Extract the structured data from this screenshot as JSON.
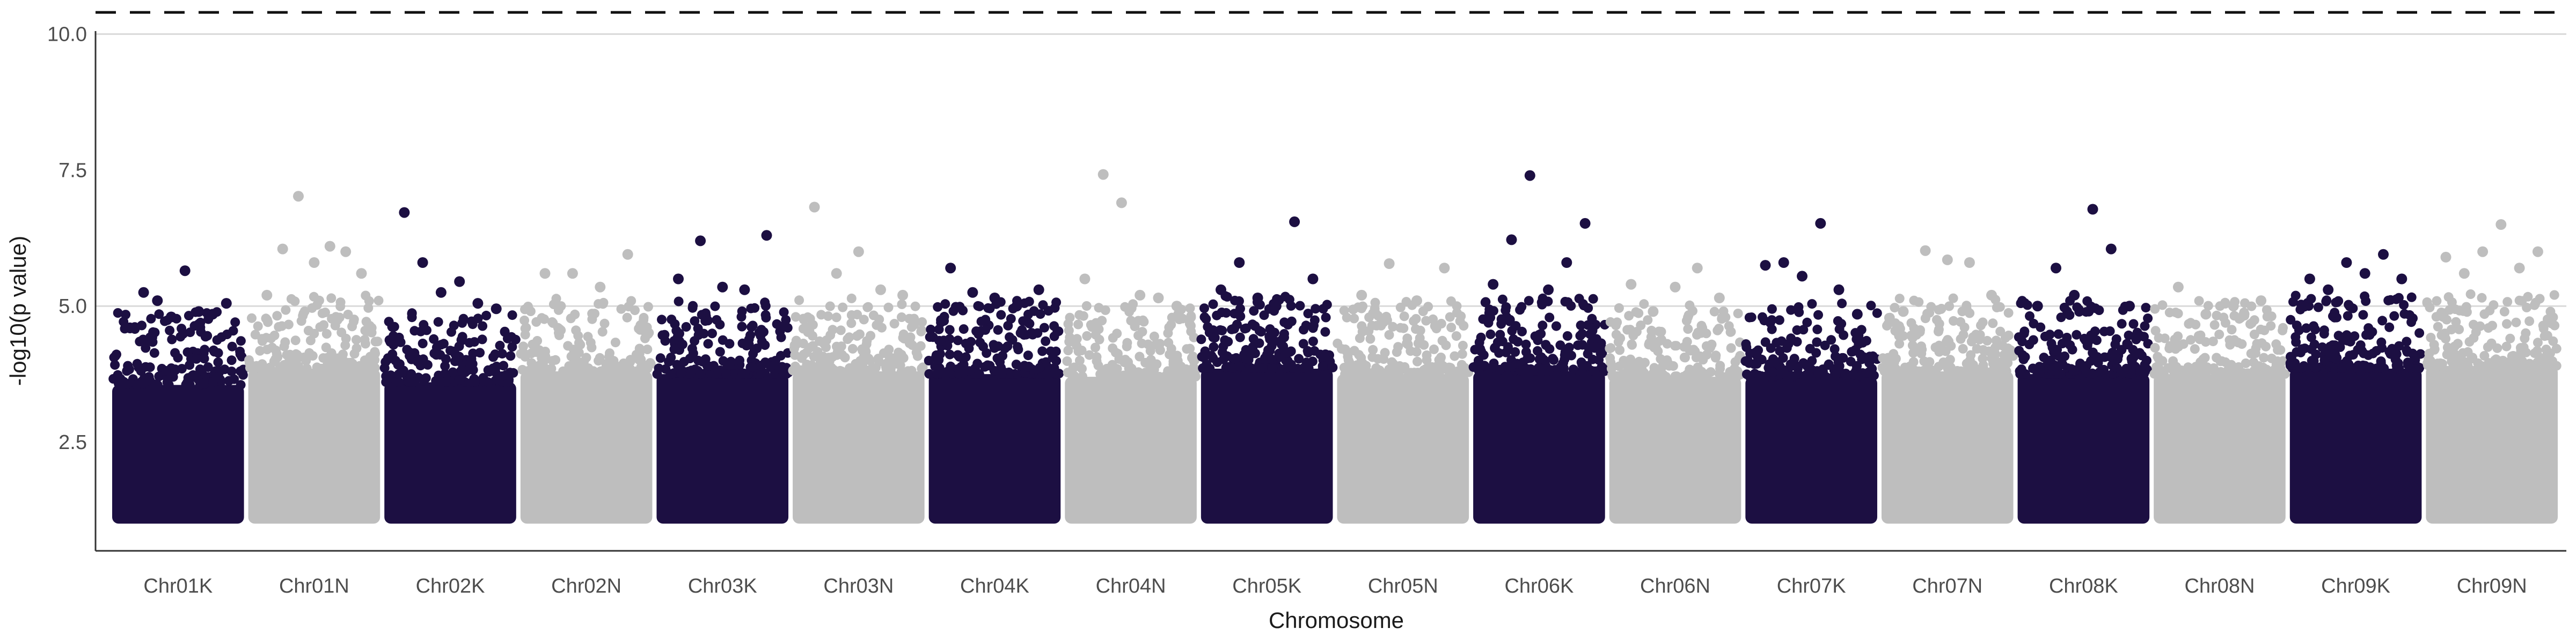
{
  "chart_data": {
    "type": "scatter",
    "title": "",
    "xlabel": "Chromosome",
    "ylabel": "-log10(p value)",
    "categories": [
      "Chr01K",
      "Chr01N",
      "Chr02K",
      "Chr02N",
      "Chr03K",
      "Chr03N",
      "Chr04K",
      "Chr04N",
      "Chr05K",
      "Chr05N",
      "Chr06K",
      "Chr06N",
      "Chr07K",
      "Chr07N",
      "Chr08K",
      "Chr08N",
      "Chr09K",
      "Chr09N"
    ],
    "y_ticks": [
      "2.5",
      "5.0",
      "7.5",
      "10.0"
    ],
    "ylim": [
      0.5,
      10.45
    ],
    "gridlines_y": [
      5.0,
      10.0
    ],
    "threshold_line": {
      "y": 10.4,
      "style": "dashed"
    },
    "colors": {
      "K": "#1c0f42",
      "N": "#bebebe",
      "grid": "#d9d9d9",
      "axis": "#333333",
      "threshold": "#111111"
    },
    "point_floor": 1.0,
    "series": [
      {
        "chromosome": "Chr01K",
        "dense_top": 3.55,
        "peaks": [
          4.6,
          5.25,
          5.1,
          4.8,
          5.65,
          4.9,
          4.85,
          5.05
        ]
      },
      {
        "chromosome": "Chr01N",
        "dense_top": 3.85,
        "peaks": [
          5.2,
          6.05,
          7.02,
          5.8,
          6.1,
          6.0,
          5.6
        ]
      },
      {
        "chromosome": "Chr02K",
        "dense_top": 3.6,
        "peaks": [
          6.72,
          5.8,
          5.25,
          5.45,
          5.05,
          4.95
        ]
      },
      {
        "chromosome": "Chr02N",
        "dense_top": 3.8,
        "peaks": [
          5.6,
          5.6,
          5.35,
          5.95
        ]
      },
      {
        "chromosome": "Chr03K",
        "dense_top": 3.75,
        "peaks": [
          5.5,
          6.2,
          5.35,
          5.3,
          6.3
        ]
      },
      {
        "chromosome": "Chr03N",
        "dense_top": 3.8,
        "peaks": [
          6.82,
          5.6,
          6.0,
          5.3,
          5.2
        ]
      },
      {
        "chromosome": "Chr04K",
        "dense_top": 3.75,
        "peaks": [
          5.7,
          5.25,
          5.15,
          5.0,
          5.3
        ]
      },
      {
        "chromosome": "Chr04N",
        "dense_top": 3.7,
        "peaks": [
          5.5,
          7.42,
          6.9,
          5.2,
          5.15,
          5.0
        ]
      },
      {
        "chromosome": "Chr05K",
        "dense_top": 3.85,
        "peaks": [
          5.3,
          5.8,
          5.15,
          5.0,
          6.55,
          5.5
        ]
      },
      {
        "chromosome": "Chr05N",
        "dense_top": 3.75,
        "peaks": [
          5.2,
          5.78,
          5.1,
          5.7
        ]
      },
      {
        "chromosome": "Chr06K",
        "dense_top": 3.8,
        "peaks": [
          5.4,
          6.22,
          7.4,
          5.3,
          5.8,
          6.52
        ]
      },
      {
        "chromosome": "Chr06N",
        "dense_top": 3.7,
        "peaks": [
          5.4,
          4.9,
          5.35,
          5.7,
          5.15
        ]
      },
      {
        "chromosome": "Chr07K",
        "dense_top": 3.7,
        "peaks": [
          5.75,
          5.8,
          5.55,
          6.52,
          5.3,
          4.85
        ]
      },
      {
        "chromosome": "Chr07N",
        "dense_top": 3.8,
        "peaks": [
          4.9,
          6.02,
          5.85,
          5.8,
          5.2
        ]
      },
      {
        "chromosome": "Chr08K",
        "dense_top": 3.75,
        "peaks": [
          5.0,
          5.7,
          5.2,
          6.78,
          6.05,
          5.0
        ]
      },
      {
        "chromosome": "Chr08N",
        "dense_top": 3.75,
        "peaks": [
          5.35,
          4.85,
          5.0,
          5.1
        ]
      },
      {
        "chromosome": "Chr09K",
        "dense_top": 3.85,
        "peaks": [
          5.5,
          5.3,
          5.8,
          5.6,
          5.95,
          5.5
        ]
      },
      {
        "chromosome": "Chr09N",
        "dense_top": 3.9,
        "peaks": [
          5.9,
          5.6,
          6.0,
          6.5,
          5.7,
          6.0
        ]
      }
    ]
  }
}
